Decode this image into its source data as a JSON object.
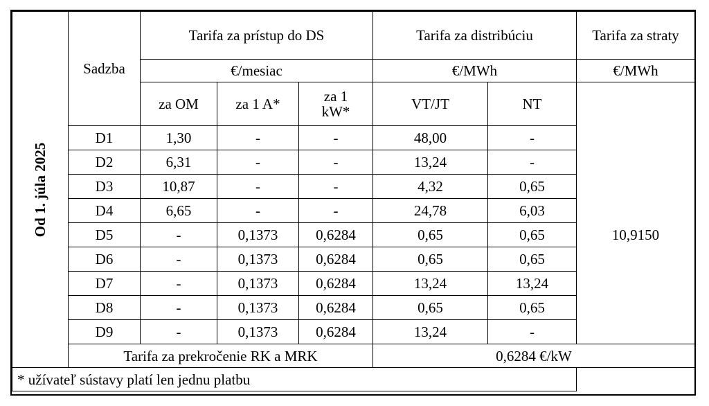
{
  "period_label": "Od 1. júla 2025",
  "header": {
    "sadzba": "Sadzba",
    "group_access": "Tarifa za prístup do DS",
    "group_distribution": "Tarifa za distribúciu",
    "group_losses": "Tarifa za straty",
    "unit_access": "€/mesiac",
    "unit_distribution": "€/MWh",
    "unit_losses": "€/MWh",
    "col_za_om": "za OM",
    "col_za_1a": "za 1 A*",
    "col_za_1kw": "za 1 kW*",
    "col_vt_jt": "VT/JT",
    "col_nt": "NT"
  },
  "rows": [
    {
      "sadzba": "D1",
      "za_om": "1,30",
      "za_1a": "-",
      "za_1kw": "-",
      "vt_jt": "48,00",
      "nt": "-"
    },
    {
      "sadzba": "D2",
      "za_om": "6,31",
      "za_1a": "-",
      "za_1kw": "-",
      "vt_jt": "13,24",
      "nt": "-"
    },
    {
      "sadzba": "D3",
      "za_om": "10,87",
      "za_1a": "-",
      "za_1kw": "-",
      "vt_jt": "4,32",
      "nt": "0,65"
    },
    {
      "sadzba": "D4",
      "za_om": "6,65",
      "za_1a": "-",
      "za_1kw": "-",
      "vt_jt": "24,78",
      "nt": "6,03"
    },
    {
      "sadzba": "D5",
      "za_om": "-",
      "za_1a": "0,1373",
      "za_1kw": "0,6284",
      "vt_jt": "0,65",
      "nt": "0,65"
    },
    {
      "sadzba": "D6",
      "za_om": "-",
      "za_1a": "0,1373",
      "za_1kw": "0,6284",
      "vt_jt": "0,65",
      "nt": "0,65"
    },
    {
      "sadzba": "D7",
      "za_om": "-",
      "za_1a": "0,1373",
      "za_1kw": "0,6284",
      "vt_jt": "13,24",
      "nt": "13,24"
    },
    {
      "sadzba": "D8",
      "za_om": "-",
      "za_1a": "0,1373",
      "za_1kw": "0,6284",
      "vt_jt": "0,65",
      "nt": "0,65"
    },
    {
      "sadzba": "D9",
      "za_om": "-",
      "za_1a": "0,1373",
      "za_1kw": "0,6284",
      "vt_jt": "13,24",
      "nt": "-"
    }
  ],
  "losses_value": "10,9150",
  "overrun": {
    "label": "Tarifa za prekročenie RK a MRK",
    "value": "0,6284 €/kW"
  },
  "footnote": "* užívateľ sústavy platí len jednu platbu"
}
